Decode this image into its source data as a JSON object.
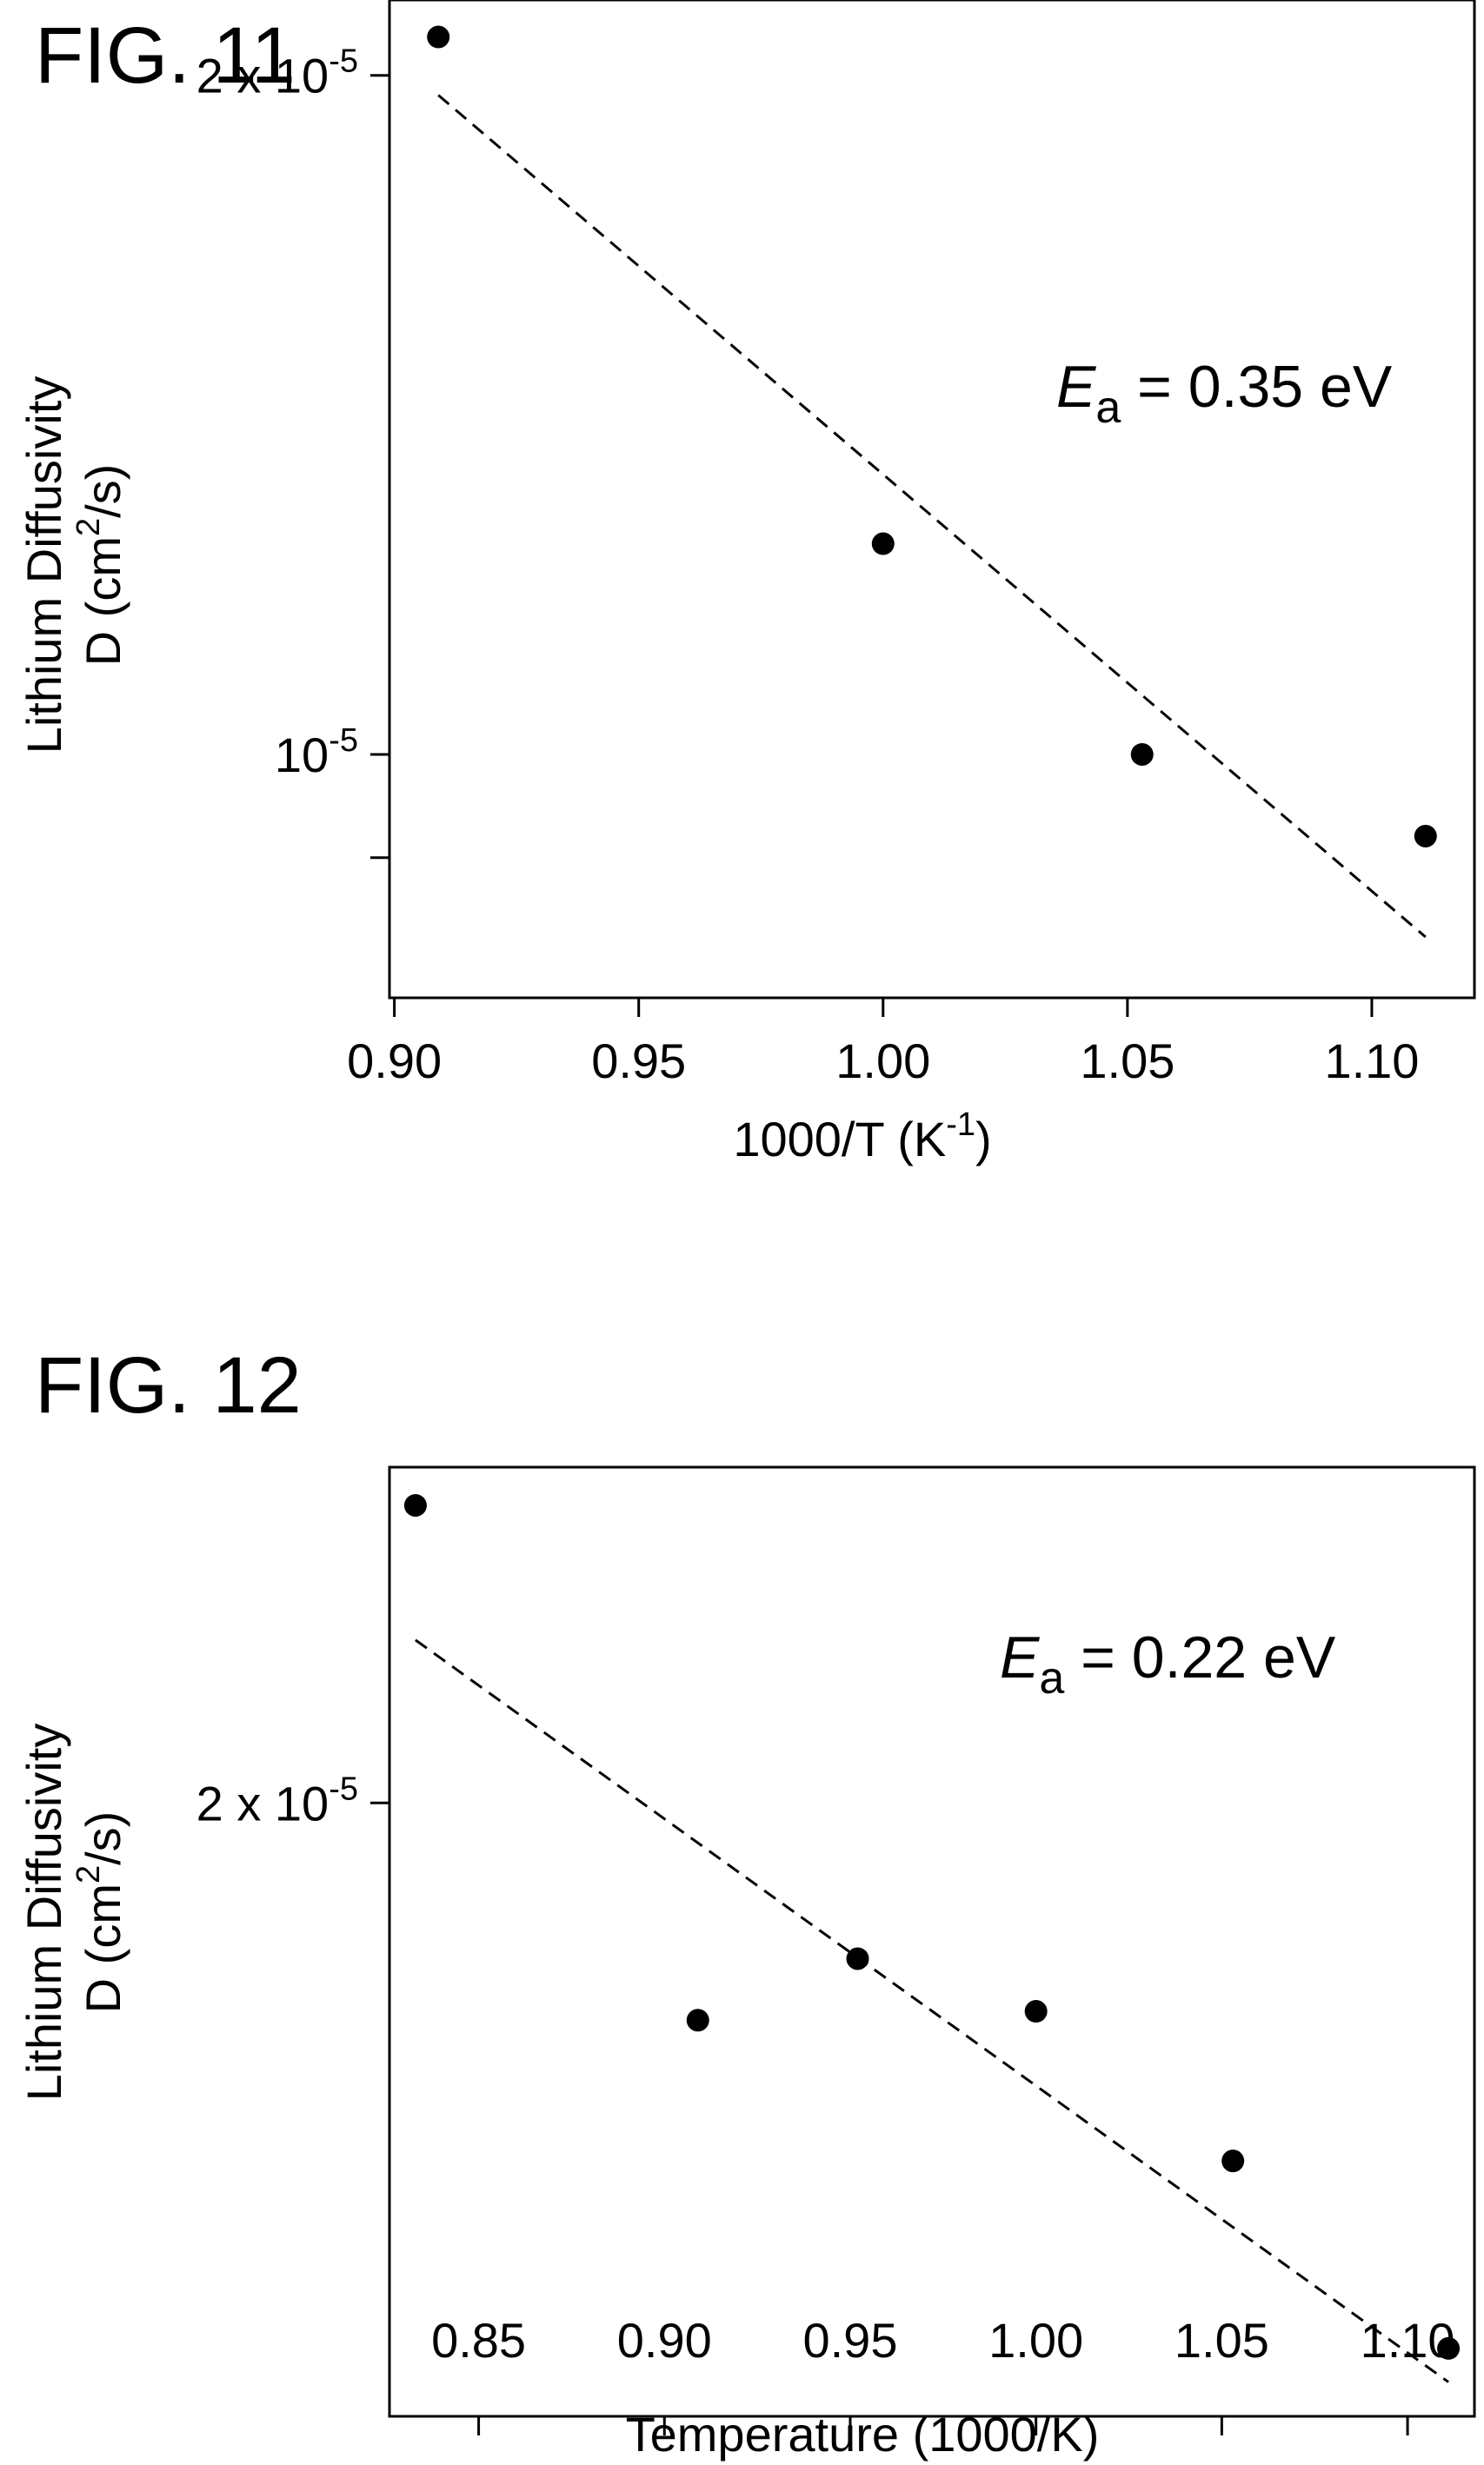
{
  "figures": [
    {
      "label": "FIG. 11"
    },
    {
      "label": "FIG. 12"
    }
  ],
  "chart_data": [
    {
      "type": "scatter",
      "title": "",
      "xlabel": "1000/T (K-1)",
      "xlabel_parts": {
        "main": "1000/T (K",
        "sup": "-1",
        "close": ")"
      },
      "ylabel_line1": "Lithium Diffusivity",
      "ylabel_line2_parts": {
        "main": "D (cm",
        "sup": "2",
        "close": "/s)"
      },
      "xlim": [
        0.899,
        1.121
      ],
      "ylim": [
        7.8e-06,
        2.16e-05
      ],
      "y_scale": "log",
      "grid": false,
      "x_ticks": [
        {
          "value": 0.9,
          "label": "0.90"
        },
        {
          "value": 0.95,
          "label": "0.95"
        },
        {
          "value": 1.0,
          "label": "1.00"
        },
        {
          "value": 1.05,
          "label": "1.05"
        },
        {
          "value": 1.1,
          "label": "1.10"
        }
      ],
      "y_ticks": [
        {
          "value": 2e-05,
          "base": "2 x 10",
          "exp": "-5"
        },
        {
          "value": 1e-05,
          "base": "10",
          "exp": "-5"
        },
        {
          "value": 9e-06,
          "base": "",
          "exp": ""
        }
      ],
      "points": [
        {
          "x": 0.909,
          "y": 2.08e-05
        },
        {
          "x": 1.0,
          "y": 1.24e-05
        },
        {
          "x": 1.053,
          "y": 1e-05
        },
        {
          "x": 1.111,
          "y": 9.2e-06
        }
      ],
      "fit_line": {
        "style": "dashed",
        "x": [
          0.909,
          1.111
        ],
        "y": [
          1.96e-05,
          8.3e-06
        ]
      },
      "annotation": {
        "symbol": "E",
        "subscript": "a",
        "text": " = 0.35 eV"
      }
    },
    {
      "type": "scatter",
      "title": "",
      "xlabel": "Temperature (1000/K)",
      "ylabel_line1": "Lithium Diffusivity",
      "ylabel_line2_parts": {
        "main": "D (cm",
        "sup": "2",
        "close": "/s)"
      },
      "xlim": [
        0.826,
        1.118
      ],
      "ylim": [
        1.35e-05,
        2.48e-05
      ],
      "y_scale": "log",
      "grid": false,
      "x_ticks": [
        {
          "value": 0.85,
          "label": "0.85"
        },
        {
          "value": 0.9,
          "label": "0.90"
        },
        {
          "value": 0.95,
          "label": "0.95"
        },
        {
          "value": 1.0,
          "label": "1.00"
        },
        {
          "value": 1.05,
          "label": "1.05"
        },
        {
          "value": 1.1,
          "label": "1.10"
        }
      ],
      "y_ticks": [
        {
          "value": 2e-05,
          "base": "2 x 10",
          "exp": "-5"
        }
      ],
      "points": [
        {
          "x": 0.833,
          "y": 2.42e-05
        },
        {
          "x": 0.909,
          "y": 1.74e-05
        },
        {
          "x": 0.952,
          "y": 1.81e-05
        },
        {
          "x": 1.0,
          "y": 1.75e-05
        },
        {
          "x": 1.053,
          "y": 1.59e-05
        },
        {
          "x": 1.111,
          "y": 1.41e-05
        }
      ],
      "fit_line": {
        "style": "dashed",
        "x": [
          0.833,
          1.111
        ],
        "y": [
          2.22e-05,
          1.38e-05
        ]
      },
      "annotation": {
        "symbol": "E",
        "subscript": "a",
        "text": " = 0.22 eV"
      }
    }
  ]
}
